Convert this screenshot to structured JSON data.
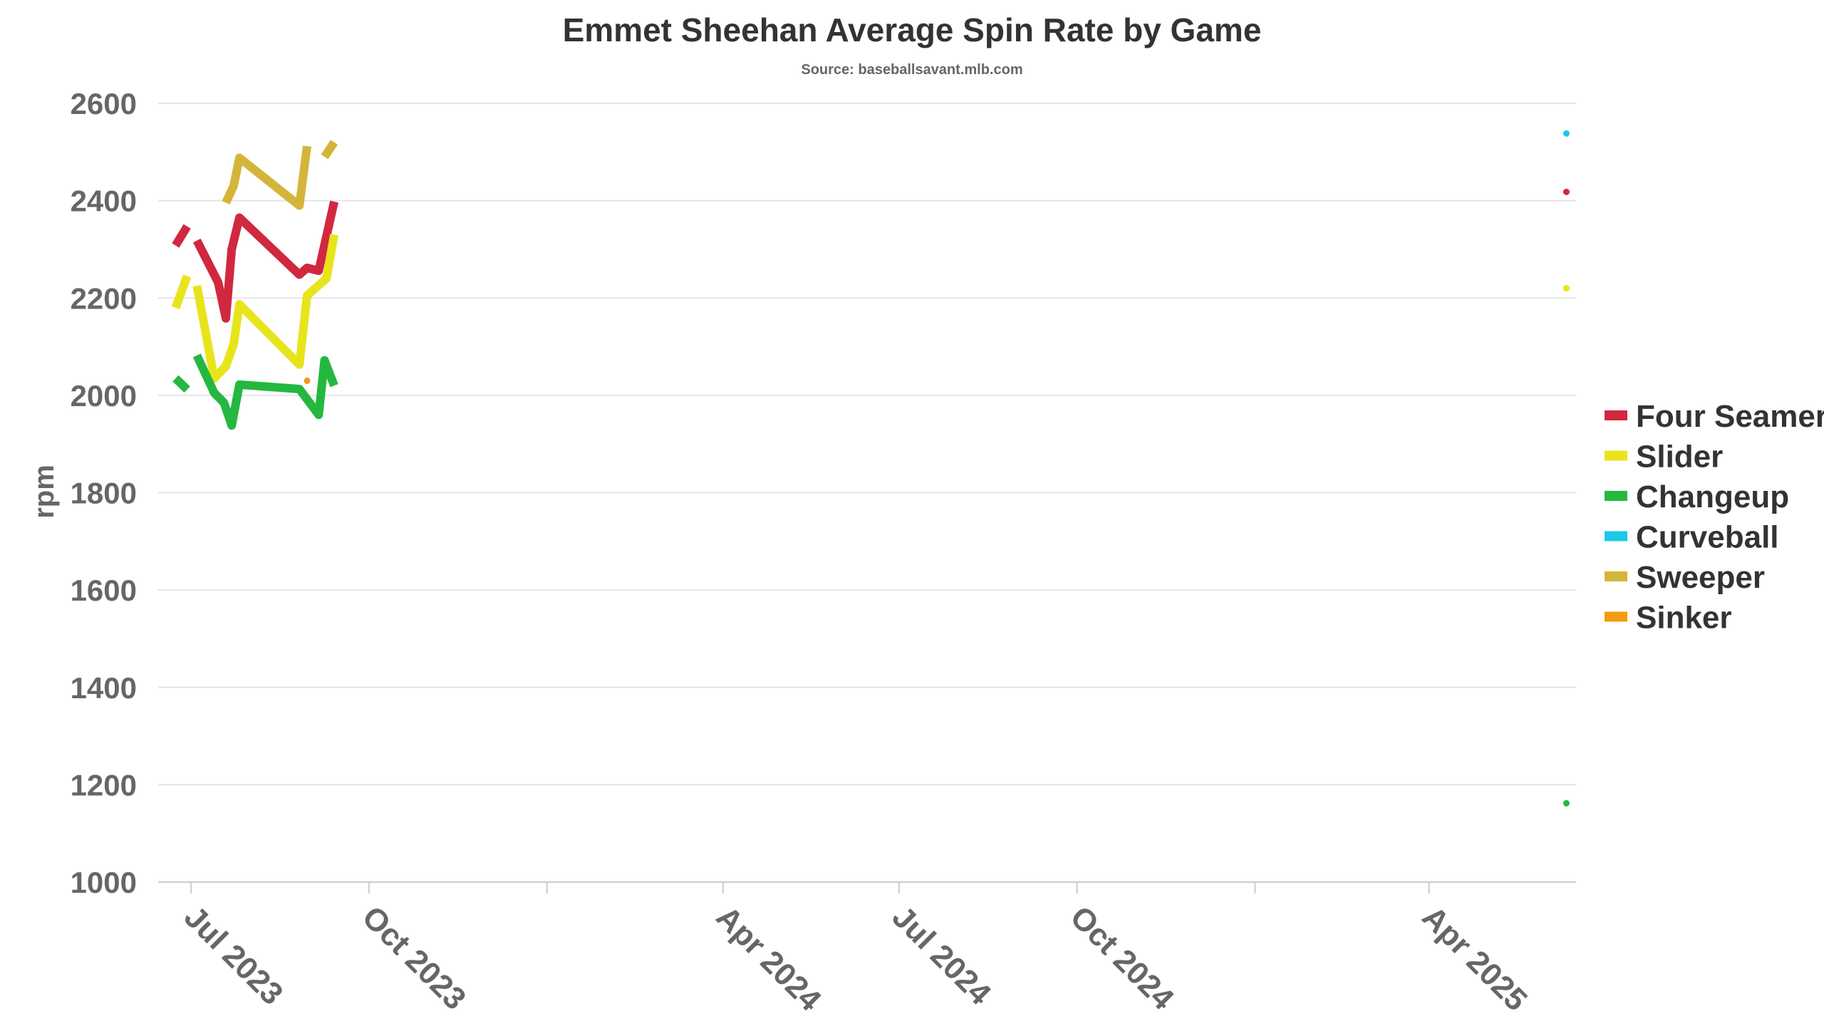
{
  "chart_data": {
    "type": "line",
    "title": "Emmet Sheehan Average Spin Rate by Game",
    "subtitle": "Source: baseballsavant.mlb.com",
    "ylabel": "rpm",
    "xlabel": "",
    "ylim": [
      1000,
      2600
    ],
    "yticks": [
      1000,
      1200,
      1400,
      1600,
      1800,
      2000,
      2200,
      2400,
      2600
    ],
    "xlim": [
      "2023-06-14",
      "2025-06-16"
    ],
    "xtick_dates": [
      "2023-07-01",
      "2023-10-01",
      "2024-01-01",
      "2024-04-01",
      "2024-07-01",
      "2024-10-01",
      "2025-01-01",
      "2025-04-01"
    ],
    "xtick_labels": [
      "Jul 2023",
      "Oct 2023",
      "",
      "Apr 2024",
      "Jul 2024",
      "Oct 2024",
      "",
      "Apr 2025"
    ],
    "grid": "horizontal",
    "legend_position": "right",
    "series": [
      {
        "name": "Four Seamer",
        "color": "#d0283f",
        "segments": [
          [
            [
              "2023-06-23",
              2308
            ],
            [
              "2023-06-29",
              2347
            ]
          ],
          [
            [
              "2023-07-04",
              2318
            ],
            [
              "2023-07-15",
              2232
            ],
            [
              "2023-07-19",
              2158
            ],
            [
              "2023-07-22",
              2300
            ],
            [
              "2023-07-26",
              2365
            ],
            [
              "2023-08-26",
              2248
            ],
            [
              "2023-08-30",
              2262
            ],
            [
              "2023-09-05",
              2256
            ],
            [
              "2023-09-13",
              2398
            ]
          ]
        ]
      },
      {
        "name": "Slider",
        "color": "#e8e41c",
        "segments": [
          [
            [
              "2023-06-23",
              2180
            ],
            [
              "2023-06-29",
              2245
            ]
          ],
          [
            [
              "2023-07-04",
              2225
            ],
            [
              "2023-07-13",
              2035
            ],
            [
              "2023-07-19",
              2060
            ],
            [
              "2023-07-23",
              2105
            ],
            [
              "2023-07-26",
              2187
            ],
            [
              "2023-08-26",
              2063
            ],
            [
              "2023-08-30",
              2205
            ],
            [
              "2023-09-09",
              2240
            ],
            [
              "2023-09-13",
              2330
            ]
          ]
        ]
      },
      {
        "name": "Changeup",
        "color": "#25b840",
        "segments": [
          [
            [
              "2023-06-23",
              2035
            ],
            [
              "2023-06-29",
              2012
            ]
          ],
          [
            [
              "2023-07-04",
              2082
            ],
            [
              "2023-07-13",
              2005
            ],
            [
              "2023-07-18",
              1985
            ],
            [
              "2023-07-22",
              1938
            ],
            [
              "2023-07-26",
              2022
            ],
            [
              "2023-08-26",
              2013
            ],
            [
              "2023-09-05",
              1960
            ],
            [
              "2023-09-08",
              2072
            ],
            [
              "2023-09-13",
              2020
            ]
          ],
          [
            [
              "2025-06-11",
              1162
            ]
          ]
        ]
      },
      {
        "name": "Curveball",
        "color": "#1cc8e8",
        "segments": [
          [
            [
              "2025-06-11",
              2538
            ]
          ]
        ]
      },
      {
        "name": "Sweeper",
        "color": "#d4b53a",
        "segments": [
          [
            [
              "2023-07-19",
              2396
            ],
            [
              "2023-07-23",
              2430
            ],
            [
              "2023-07-26",
              2488
            ],
            [
              "2023-08-26",
              2390
            ],
            [
              "2023-08-30",
              2512
            ]
          ],
          [
            [
              "2023-09-08",
              2490
            ],
            [
              "2023-09-13",
              2520
            ]
          ]
        ]
      },
      {
        "name": "Sinker",
        "color": "#f39a10",
        "segments": [
          [
            [
              "2023-08-30",
              2030
            ]
          ]
        ]
      }
    ],
    "extra_points": [
      {
        "series": "Four Seamer",
        "date": "2025-06-11",
        "value": 2418
      },
      {
        "series": "Slider",
        "date": "2025-06-11",
        "value": 2220
      }
    ]
  }
}
